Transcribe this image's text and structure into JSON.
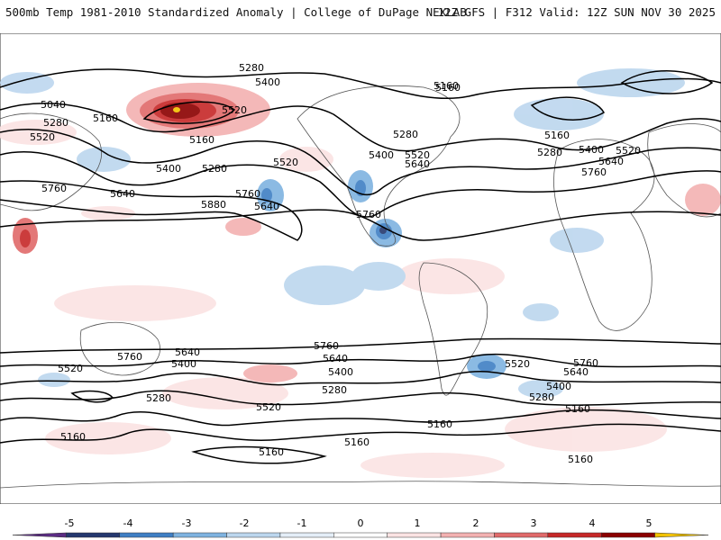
{
  "header": {
    "title": "500mb Temp 1981-2010 Standardized Anomaly | College of DuPage NEXLAB",
    "run_info": "12Z GFS | F312 Valid: 12Z SUN NOV 30 2025"
  },
  "colorbar": {
    "ticks": [
      "-5",
      "-4",
      "-3",
      "-2",
      "-1",
      "0",
      "1",
      "2",
      "3",
      "4",
      "5"
    ],
    "colors": [
      "#5b2c83",
      "#24386e",
      "#3f7fc4",
      "#7fb3e0",
      "#bcd6ee",
      "#e4eef8",
      "#ffffff",
      "#fbe3e3",
      "#f3b1b1",
      "#e06a6a",
      "#c62828",
      "#8b0000",
      "#f2c200"
    ]
  },
  "contour_labels": [
    {
      "id": "n-5280-a",
      "text": "5280"
    },
    {
      "id": "n-5400-a",
      "text": "5400"
    },
    {
      "id": "n-5520-a",
      "text": "5520"
    },
    {
      "id": "n-5160-a",
      "text": "5160"
    },
    {
      "id": "n-5040-a",
      "text": "5040"
    },
    {
      "id": "n-5160-b",
      "text": "5160"
    },
    {
      "id": "n-5280-b",
      "text": "5280"
    },
    {
      "id": "n-5520-b",
      "text": "5520"
    },
    {
      "id": "n-5160-c",
      "text": "5160"
    },
    {
      "id": "n-5400-b",
      "text": "5400"
    },
    {
      "id": "n-5280-c",
      "text": "5280"
    },
    {
      "id": "n-5520-c",
      "text": "5520"
    },
    {
      "id": "n-5760-a",
      "text": "5760"
    },
    {
      "id": "n-5640-a",
      "text": "5640"
    },
    {
      "id": "n-5760-b",
      "text": "5760"
    },
    {
      "id": "n-5640-b",
      "text": "5640"
    },
    {
      "id": "n-5880-a",
      "text": "5880"
    },
    {
      "id": "n-5160-d",
      "text": "5160"
    },
    {
      "id": "n-5280-d",
      "text": "5280"
    },
    {
      "id": "n-5400-c",
      "text": "5400"
    },
    {
      "id": "n-5520-d",
      "text": "5520"
    },
    {
      "id": "n-5640-c",
      "text": "5640"
    },
    {
      "id": "n-5760-c",
      "text": "5760"
    },
    {
      "id": "n-5160-e",
      "text": "5160"
    },
    {
      "id": "n-5280-e",
      "text": "5280"
    },
    {
      "id": "n-5400-d",
      "text": "5400"
    },
    {
      "id": "n-5520-e",
      "text": "5520"
    },
    {
      "id": "n-5640-d",
      "text": "5640"
    },
    {
      "id": "n-5760-d",
      "text": "5760"
    },
    {
      "id": "s-5760-a",
      "text": "5760"
    },
    {
      "id": "s-5640-a",
      "text": "5640"
    },
    {
      "id": "s-5400-a",
      "text": "5400"
    },
    {
      "id": "s-5520-a",
      "text": "5520"
    },
    {
      "id": "s-5280-a",
      "text": "5280"
    },
    {
      "id": "s-5160-a",
      "text": "5160"
    },
    {
      "id": "s-5520-b",
      "text": "5520"
    },
    {
      "id": "s-5760-b",
      "text": "5760"
    },
    {
      "id": "s-5640-b",
      "text": "5640"
    },
    {
      "id": "s-5400-b",
      "text": "5400"
    },
    {
      "id": "s-5280-b",
      "text": "5280"
    },
    {
      "id": "s-5160-b",
      "text": "5160"
    },
    {
      "id": "s-5160-c",
      "text": "5160"
    },
    {
      "id": "s-5520-c",
      "text": "5520"
    },
    {
      "id": "s-5760-e",
      "text": "5760"
    },
    {
      "id": "s-5640-e",
      "text": "5640"
    },
    {
      "id": "s-5400-e",
      "text": "5400"
    },
    {
      "id": "s-5280-e",
      "text": "5280"
    },
    {
      "id": "s-5160-e",
      "text": "5160"
    },
    {
      "id": "s-5160-f",
      "text": "5160"
    },
    {
      "id": "s-5160-g",
      "text": "5160"
    }
  ]
}
